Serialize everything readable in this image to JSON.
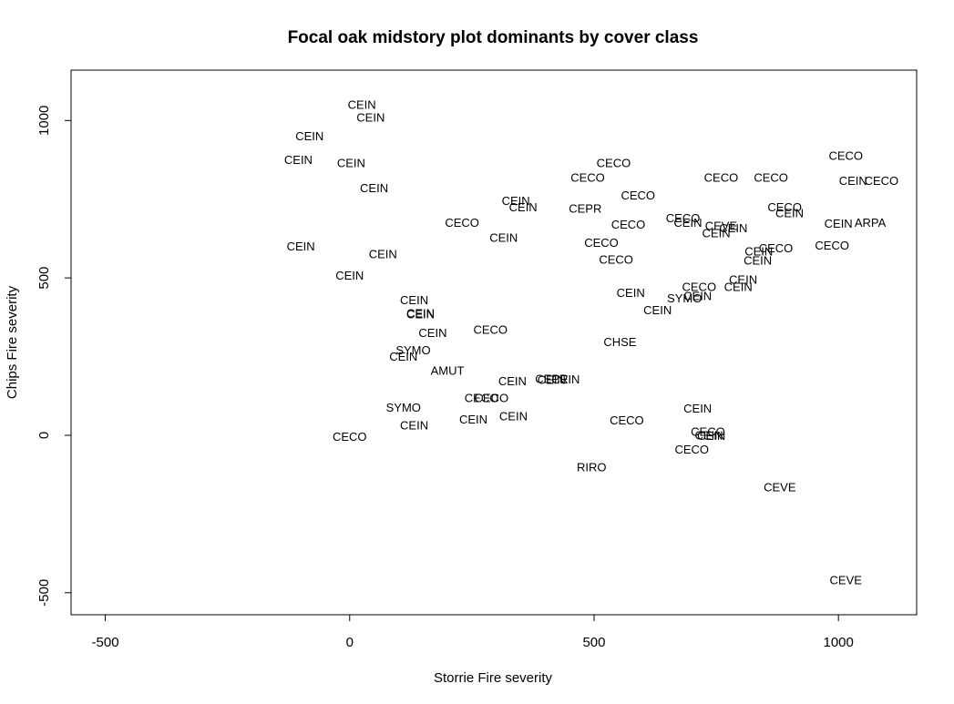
{
  "chart_data": {
    "type": "scatter",
    "title": "Focal oak midstory plot dominants by cover class",
    "xlabel": "Storrie Fire severity",
    "ylabel": "Chips Fire severity",
    "xlim": [
      -570,
      1160
    ],
    "ylim": [
      -570,
      1160
    ],
    "xticks": [
      -500,
      0,
      500,
      1000
    ],
    "yticks": [
      -500,
      0,
      500,
      1000
    ],
    "grid": false,
    "points": [
      {
        "x": 25,
        "y": 1050,
        "label": "CEIN"
      },
      {
        "x": 43,
        "y": 1010,
        "label": "CEIN"
      },
      {
        "x": -82,
        "y": 950,
        "label": "CEIN"
      },
      {
        "x": -105,
        "y": 875,
        "label": "CEIN"
      },
      {
        "x": 3,
        "y": 865,
        "label": "CEIN"
      },
      {
        "x": 50,
        "y": 785,
        "label": "CEIN"
      },
      {
        "x": 1015,
        "y": 888,
        "label": "CECO"
      },
      {
        "x": 1030,
        "y": 808,
        "label": "CEIN"
      },
      {
        "x": 1088,
        "y": 808,
        "label": "CECO"
      },
      {
        "x": 540,
        "y": 865,
        "label": "CECO"
      },
      {
        "x": 487,
        "y": 818,
        "label": "CECO"
      },
      {
        "x": 760,
        "y": 818,
        "label": "CECO"
      },
      {
        "x": 862,
        "y": 818,
        "label": "CECO"
      },
      {
        "x": 590,
        "y": 762,
        "label": "CECO"
      },
      {
        "x": 340,
        "y": 745,
        "label": "CEIN"
      },
      {
        "x": 355,
        "y": 725,
        "label": "CEIN"
      },
      {
        "x": 482,
        "y": 720,
        "label": "CEPR"
      },
      {
        "x": 890,
        "y": 725,
        "label": "CECO"
      },
      {
        "x": 900,
        "y": 706,
        "label": "CEIN"
      },
      {
        "x": 230,
        "y": 675,
        "label": "CECO"
      },
      {
        "x": 682,
        "y": 690,
        "label": "CECO"
      },
      {
        "x": 570,
        "y": 670,
        "label": "CECO"
      },
      {
        "x": 692,
        "y": 675,
        "label": "CEIN"
      },
      {
        "x": 760,
        "y": 665,
        "label": "CEVE"
      },
      {
        "x": 785,
        "y": 658,
        "label": "CEIN"
      },
      {
        "x": 750,
        "y": 642,
        "label": "CEIN"
      },
      {
        "x": 1000,
        "y": 672,
        "label": "CEIN"
      },
      {
        "x": 1065,
        "y": 675,
        "label": "ARPA"
      },
      {
        "x": 315,
        "y": 628,
        "label": "CEIN"
      },
      {
        "x": 515,
        "y": 612,
        "label": "CECO"
      },
      {
        "x": 987,
        "y": 603,
        "label": "CECO"
      },
      {
        "x": -100,
        "y": 600,
        "label": "CEIN"
      },
      {
        "x": 837,
        "y": 585,
        "label": "CEIN"
      },
      {
        "x": 872,
        "y": 595,
        "label": "CECO"
      },
      {
        "x": 68,
        "y": 575,
        "label": "CEIN"
      },
      {
        "x": 545,
        "y": 558,
        "label": "CECO"
      },
      {
        "x": 835,
        "y": 555,
        "label": "CEIN"
      },
      {
        "x": 0,
        "y": 508,
        "label": "CEIN"
      },
      {
        "x": 805,
        "y": 495,
        "label": "CEIN"
      },
      {
        "x": 795,
        "y": 472,
        "label": "CEIN"
      },
      {
        "x": 715,
        "y": 472,
        "label": "CECO"
      },
      {
        "x": 575,
        "y": 452,
        "label": "CEIN"
      },
      {
        "x": 685,
        "y": 435,
        "label": "SYMO"
      },
      {
        "x": 712,
        "y": 442,
        "label": "CEIN"
      },
      {
        "x": 630,
        "y": 398,
        "label": "CEIN"
      },
      {
        "x": 132,
        "y": 430,
        "label": "CEIN"
      },
      {
        "x": 145,
        "y": 387,
        "label": "CEIN"
      },
      {
        "x": 145,
        "y": 385,
        "label": "CEIN"
      },
      {
        "x": 170,
        "y": 325,
        "label": "CEIN"
      },
      {
        "x": 288,
        "y": 335,
        "label": "CECO"
      },
      {
        "x": 553,
        "y": 297,
        "label": "CHSE"
      },
      {
        "x": 130,
        "y": 270,
        "label": "SYMO"
      },
      {
        "x": 110,
        "y": 250,
        "label": "CEIN"
      },
      {
        "x": 200,
        "y": 205,
        "label": "AMUT"
      },
      {
        "x": 333,
        "y": 172,
        "label": "CEIN"
      },
      {
        "x": 413,
        "y": 180,
        "label": "CEPR"
      },
      {
        "x": 413,
        "y": 176,
        "label": "CEIN"
      },
      {
        "x": 442,
        "y": 178,
        "label": "CEIN"
      },
      {
        "x": 270,
        "y": 118,
        "label": "CECO"
      },
      {
        "x": 290,
        "y": 118,
        "label": "CECO"
      },
      {
        "x": 110,
        "y": 88,
        "label": "SYMO"
      },
      {
        "x": 712,
        "y": 85,
        "label": "CEIN"
      },
      {
        "x": 253,
        "y": 50,
        "label": "CEIN"
      },
      {
        "x": 335,
        "y": 60,
        "label": "CEIN"
      },
      {
        "x": 567,
        "y": 47,
        "label": "CECO"
      },
      {
        "x": 132,
        "y": 32,
        "label": "CEIN"
      },
      {
        "x": 733,
        "y": 12,
        "label": "CECO"
      },
      {
        "x": 735,
        "y": 0,
        "label": "CEIN"
      },
      {
        "x": 740,
        "y": -2,
        "label": "CEIN"
      },
      {
        "x": 0,
        "y": -4,
        "label": "CECO"
      },
      {
        "x": 700,
        "y": -45,
        "label": "CECO"
      },
      {
        "x": 495,
        "y": -102,
        "label": "RIRO"
      },
      {
        "x": 880,
        "y": -165,
        "label": "CEVE"
      },
      {
        "x": 1015,
        "y": -460,
        "label": "CEVE"
      }
    ]
  }
}
